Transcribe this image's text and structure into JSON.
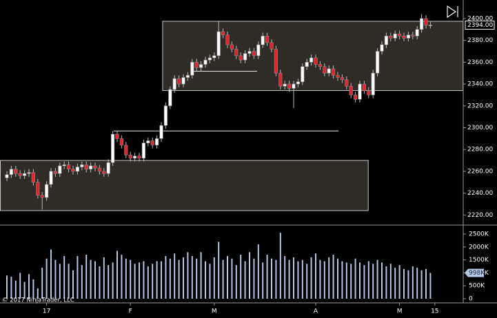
{
  "chart_data": {
    "type": "candlestick",
    "copyright": "© 2017 NinjaTrader, LLC",
    "categories": [
      null,
      null,
      null,
      null,
      null,
      null,
      null,
      null,
      null,
      "17",
      null,
      null,
      null,
      null,
      null,
      null,
      null,
      null,
      null,
      null,
      null,
      null,
      null,
      null,
      null,
      null,
      null,
      null,
      "F",
      null,
      null,
      null,
      null,
      null,
      null,
      null,
      null,
      null,
      null,
      null,
      null,
      null,
      null,
      null,
      null,
      null,
      null,
      "M",
      null,
      null,
      null,
      null,
      null,
      null,
      null,
      null,
      null,
      null,
      null,
      null,
      null,
      null,
      null,
      null,
      null,
      null,
      null,
      null,
      null,
      null,
      "A",
      null,
      null,
      null,
      null,
      null,
      null,
      null,
      null,
      null,
      null,
      null,
      null,
      null,
      null,
      null,
      null,
      null,
      null,
      "M",
      null,
      null,
      null,
      null,
      null,
      null,
      null,
      "15"
    ],
    "open": [
      2254,
      2257,
      2262,
      2258,
      2256,
      2258,
      2259,
      2250,
      2238,
      2236,
      2248,
      2260,
      2258,
      2265,
      2266,
      2262,
      2260,
      2264,
      2266,
      2262,
      2265,
      2263,
      2260,
      2258,
      2268,
      2294,
      2290,
      2284,
      2275,
      2272,
      2274,
      2272,
      2286,
      2288,
      2284,
      2290,
      2302,
      2320,
      2335,
      2345,
      2340,
      2346,
      2348,
      2360,
      2355,
      2358,
      2362,
      2364,
      2366,
      2388,
      2385,
      2376,
      2372,
      2366,
      2362,
      2368,
      2370,
      2366,
      2376,
      2384,
      2378,
      2372,
      2350,
      2338,
      2340,
      2336,
      2340,
      2342,
      2356,
      2360,
      2364,
      2358,
      2356,
      2350,
      2354,
      2348,
      2346,
      2344,
      2338,
      2330,
      2326,
      2340,
      2334,
      2330,
      2350,
      2370,
      2376,
      2384,
      2382,
      2386,
      2384,
      2382,
      2385,
      2384,
      2390,
      2400,
      2394,
      null
    ],
    "high": [
      2260,
      2265,
      2265,
      2261,
      2261,
      2262,
      2262,
      2253,
      2241,
      2251,
      2263,
      2263,
      2268,
      2269,
      2269,
      2265,
      2267,
      2269,
      2269,
      2268,
      2268,
      2266,
      2263,
      2271,
      2297,
      2297,
      2293,
      2287,
      2278,
      2277,
      2277,
      2289,
      2291,
      2291,
      2293,
      2305,
      2323,
      2338,
      2348,
      2348,
      2349,
      2351,
      2363,
      2363,
      2361,
      2365,
      2367,
      2369,
      2398,
      2391,
      2388,
      2379,
      2375,
      2369,
      2371,
      2373,
      2373,
      2379,
      2387,
      2387,
      2381,
      2375,
      2353,
      2343,
      2343,
      2343,
      2345,
      2359,
      2363,
      2367,
      2367,
      2361,
      2359,
      2357,
      2357,
      2351,
      2349,
      2347,
      2341,
      2333,
      2343,
      2343,
      2337,
      2353,
      2373,
      2379,
      2387,
      2387,
      2389,
      2389,
      2387,
      2388,
      2388,
      2393,
      2404,
      2403,
      2397,
      null
    ],
    "low": [
      2251,
      2254,
      2255,
      2253,
      2253,
      2255,
      2247,
      2235,
      2225,
      2233,
      2245,
      2255,
      2255,
      2262,
      2259,
      2257,
      2257,
      2261,
      2259,
      2259,
      2260,
      2257,
      2255,
      2255,
      2265,
      2287,
      2281,
      2272,
      2269,
      2269,
      2269,
      2269,
      2283,
      2281,
      2281,
      2287,
      2299,
      2317,
      2332,
      2337,
      2337,
      2343,
      2345,
      2352,
      2352,
      2355,
      2359,
      2361,
      2363,
      2382,
      2373,
      2369,
      2363,
      2359,
      2359,
      2365,
      2363,
      2363,
      2373,
      2375,
      2369,
      2347,
      2335,
      2335,
      2333,
      2318,
      2337,
      2339,
      2353,
      2357,
      2355,
      2353,
      2347,
      2347,
      2345,
      2343,
      2341,
      2335,
      2327,
      2323,
      2323,
      2331,
      2327,
      2327,
      2347,
      2367,
      2373,
      2379,
      2379,
      2381,
      2379,
      2379,
      2381,
      2381,
      2387,
      2391,
      2391,
      null
    ],
    "close": [
      2257,
      2262,
      2258,
      2256,
      2258,
      2259,
      2250,
      2238,
      2236,
      2248,
      2260,
      2258,
      2265,
      2266,
      2262,
      2260,
      2264,
      2266,
      2262,
      2265,
      2263,
      2260,
      2258,
      2268,
      2294,
      2290,
      2284,
      2275,
      2272,
      2274,
      2272,
      2286,
      2288,
      2284,
      2290,
      2302,
      2320,
      2335,
      2345,
      2340,
      2346,
      2348,
      2360,
      2355,
      2358,
      2362,
      2364,
      2366,
      2388,
      2385,
      2376,
      2372,
      2366,
      2362,
      2368,
      2370,
      2366,
      2376,
      2384,
      2378,
      2372,
      2350,
      2338,
      2340,
      2336,
      2340,
      2342,
      2356,
      2360,
      2364,
      2358,
      2356,
      2350,
      2354,
      2348,
      2346,
      2344,
      2338,
      2330,
      2326,
      2340,
      2334,
      2330,
      2350,
      2370,
      2376,
      2384,
      2382,
      2386,
      2384,
      2382,
      2385,
      2384,
      2390,
      2400,
      2394,
      2394,
      null
    ],
    "volume": [
      900000,
      850000,
      700000,
      1000000,
      650000,
      950000,
      750000,
      400000,
      1200000,
      1550000,
      1900000,
      1500000,
      1350000,
      1650000,
      1350000,
      1100000,
      1650000,
      1300000,
      1700000,
      1500000,
      1450000,
      1250000,
      1600000,
      1300000,
      1400000,
      1850000,
      1700000,
      1550000,
      1500000,
      1350000,
      1400000,
      1450000,
      1250000,
      1350000,
      1450000,
      1450000,
      1650000,
      1550000,
      1750000,
      1500000,
      1600000,
      1800000,
      1650000,
      1550000,
      1800000,
      1450000,
      1350000,
      1600000,
      2200000,
      1500000,
      1650000,
      1550000,
      1300000,
      1700000,
      1450000,
      1800000,
      1550000,
      2100000,
      1400000,
      1700000,
      1550000,
      1500000,
      2550000,
      1650000,
      1500000,
      1600000,
      1450000,
      1500000,
      1350000,
      1600000,
      1750000,
      1500000,
      1450000,
      1600000,
      1700000,
      1550000,
      1450000,
      1400000,
      1350000,
      1550000,
      1400000,
      1300000,
      1450000,
      1350000,
      1500000,
      1400000,
      1250000,
      1350000,
      1200000,
      1300000,
      1150000,
      1100000,
      1250000,
      1200000,
      1100000,
      1150000,
      998000,
      null
    ],
    "up_color": "#ffffff",
    "down_color": "#e8222a",
    "volume_color": "#b4c8e6",
    "ylim": [
      2212,
      2417
    ],
    "yticks": [
      {
        "value": 2220,
        "label": "2220.00"
      },
      {
        "value": 2240,
        "label": "2240.00"
      },
      {
        "value": 2260,
        "label": "2260.00"
      },
      {
        "value": 2280,
        "label": "2280.00"
      },
      {
        "value": 2300,
        "label": "2300.00"
      },
      {
        "value": 2320,
        "label": "2320.00"
      },
      {
        "value": 2340,
        "label": "2340.00"
      },
      {
        "value": 2360,
        "label": "2360.00"
      },
      {
        "value": 2380,
        "label": "2380.00"
      },
      {
        "value": 2400,
        "label": "2400.00"
      }
    ],
    "current_price": {
      "value": 2394,
      "label": "2394.00"
    },
    "y2lim": [
      -160000,
      2766000
    ],
    "y2ticks": [
      0,
      {
        "value": 500000,
        "label": "500K"
      },
      {
        "value": 1000000,
        "label": "1000K"
      },
      {
        "value": 1500000,
        "label": "1500K"
      },
      {
        "value": 2000000,
        "label": "2000K"
      },
      {
        "value": 2500000,
        "label": "2500K"
      }
    ],
    "current_volume": {
      "value": 998000,
      "label": "998K"
    },
    "rectangles": [
      {
        "x": [
          -1.6,
          81.9
        ],
        "y": [
          2224,
          2270
        ]
      },
      {
        "x": [
          35.3,
          103.4
        ],
        "y": [
          2334,
          2397.5
        ]
      }
    ],
    "hlines": [
      {
        "x": [
          42.2,
          56.7
        ],
        "y": 2351.7
      },
      {
        "x": [
          24.2,
          75.2
        ],
        "y": 2297
      }
    ]
  }
}
